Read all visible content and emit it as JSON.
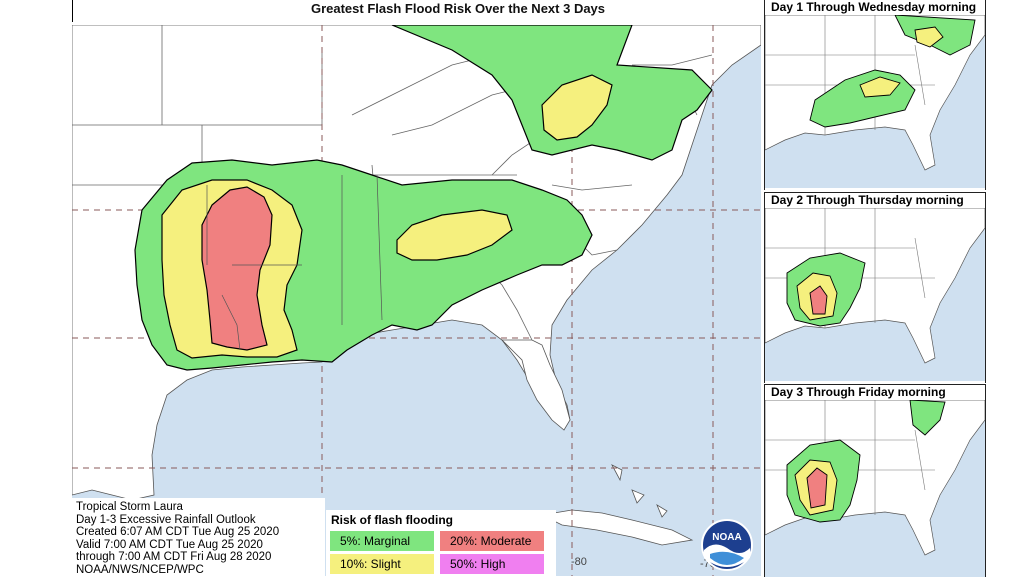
{
  "title": "Greatest Flash Flood Risk Over the Next 3 Days",
  "insets": [
    {
      "title": "Day 1 Through Wednesday morning"
    },
    {
      "title": "Day 2 Through Thursday morning"
    },
    {
      "title": "Day 3 Through Friday morning"
    }
  ],
  "info": {
    "line1": "Tropical Storm Laura",
    "line2": "Day 1-3 Excessive Rainfall Outlook",
    "line3": "Created 6:07 AM CDT Tue Aug 25 2020",
    "line4": "Valid 7:00 AM CDT Tue Aug 25 2020",
    "line5": "through 7:00 AM CDT Fri Aug 28 2020",
    "line6": "NOAA/NWS/NCEP/WPC"
  },
  "legend": {
    "title": "Risk of flash flooding",
    "items": [
      {
        "label": "5%: Marginal",
        "color": "#7fe57f"
      },
      {
        "label": "20%: Moderate",
        "color": "#f08080"
      },
      {
        "label": "10%: Slight",
        "color": "#f5f07e"
      },
      {
        "label": "50%: High",
        "color": "#f07ff0"
      }
    ]
  },
  "longitude_labels": [
    "-80",
    "-75"
  ],
  "logo_text": "NOAA",
  "colors": {
    "water": "#cfe0f0",
    "land": "#ffffff",
    "marginal": "#7fe57f",
    "slight": "#f5f07e",
    "moderate": "#f08080",
    "high": "#f07ff0",
    "outline": "#000000"
  }
}
